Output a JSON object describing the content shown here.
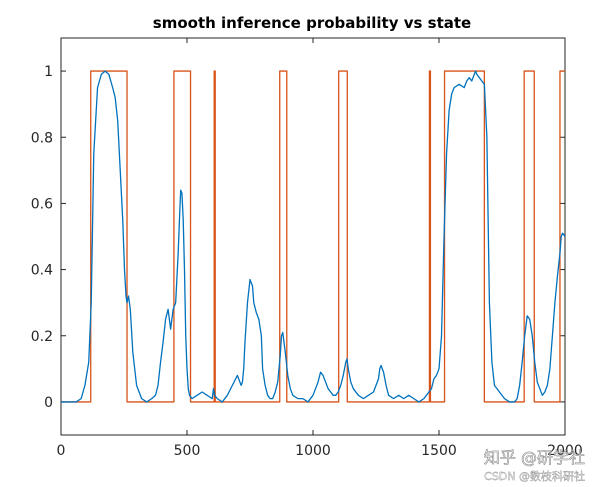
{
  "chart_data": {
    "type": "line",
    "title": "smooth inference probability vs state",
    "xlabel": "",
    "ylabel": "",
    "xlim": [
      0,
      2000
    ],
    "ylim": [
      -0.1,
      1.1
    ],
    "xticks": [
      0,
      500,
      1000,
      1500,
      2000
    ],
    "yticks": [
      0,
      0.2,
      0.4,
      0.6,
      0.8,
      1
    ],
    "xtick_labels": [
      "0",
      "500",
      "1000",
      "1500",
      "2000"
    ],
    "ytick_labels": [
      "0",
      "0.2",
      "0.4",
      "0.6",
      "0.8",
      "1"
    ],
    "grid": false,
    "series": [
      {
        "color": "#0072BD",
        "x": [
          0,
          60,
          80,
          95,
          110,
          120,
          130,
          145,
          160,
          175,
          190,
          205,
          215,
          225,
          235,
          245,
          252,
          258,
          262,
          268,
          275,
          285,
          300,
          320,
          340,
          360,
          375,
          385,
          395,
          405,
          415,
          425,
          435,
          445,
          455,
          465,
          470,
          475,
          480,
          485,
          490,
          495,
          500,
          505,
          510,
          520,
          540,
          560,
          580,
          600,
          605,
          610,
          620,
          640,
          660,
          680,
          700,
          710,
          715,
          720,
          725,
          730,
          740,
          750,
          760,
          765,
          775,
          785,
          795,
          800,
          810,
          820,
          830,
          840,
          850,
          860,
          870,
          875,
          880,
          885,
          890,
          900,
          910,
          920,
          940,
          960,
          980,
          1000,
          1010,
          1020,
          1030,
          1040,
          1050,
          1060,
          1070,
          1080,
          1090,
          1100,
          1110,
          1120,
          1130,
          1135,
          1140,
          1150,
          1160,
          1180,
          1200,
          1220,
          1240,
          1260,
          1265,
          1270,
          1280,
          1290,
          1300,
          1320,
          1340,
          1360,
          1380,
          1400,
          1420,
          1440,
          1450,
          1460,
          1470,
          1480,
          1490,
          1500,
          1510,
          1520,
          1530,
          1540,
          1550,
          1560,
          1580,
          1600,
          1610,
          1620,
          1630,
          1640,
          1645,
          1650,
          1660,
          1670,
          1680,
          1690,
          1700,
          1710,
          1720,
          1740,
          1760,
          1780,
          1800,
          1810,
          1820,
          1830,
          1840,
          1850,
          1860,
          1870,
          1880,
          1890,
          1900,
          1910,
          1920,
          1930,
          1940,
          1950,
          1960,
          1970,
          1980,
          1985,
          1990,
          2000
        ],
        "y": [
          0,
          0,
          0.01,
          0.05,
          0.12,
          0.3,
          0.75,
          0.95,
          0.99,
          1.0,
          0.99,
          0.95,
          0.92,
          0.85,
          0.7,
          0.55,
          0.4,
          0.32,
          0.3,
          0.32,
          0.28,
          0.15,
          0.05,
          0.01,
          0.0,
          0.01,
          0.02,
          0.05,
          0.12,
          0.18,
          0.25,
          0.28,
          0.22,
          0.28,
          0.3,
          0.45,
          0.55,
          0.64,
          0.63,
          0.55,
          0.4,
          0.2,
          0.1,
          0.04,
          0.02,
          0.01,
          0.02,
          0.03,
          0.02,
          0.01,
          0.04,
          0.02,
          0.01,
          0.0,
          0.02,
          0.05,
          0.08,
          0.06,
          0.05,
          0.06,
          0.1,
          0.18,
          0.3,
          0.37,
          0.35,
          0.3,
          0.27,
          0.25,
          0.2,
          0.1,
          0.05,
          0.02,
          0.01,
          0.01,
          0.03,
          0.06,
          0.14,
          0.2,
          0.21,
          0.18,
          0.15,
          0.08,
          0.04,
          0.02,
          0.01,
          0.01,
          0.0,
          0.02,
          0.04,
          0.06,
          0.09,
          0.08,
          0.06,
          0.04,
          0.03,
          0.02,
          0.02,
          0.03,
          0.05,
          0.08,
          0.12,
          0.13,
          0.1,
          0.06,
          0.04,
          0.02,
          0.01,
          0.02,
          0.03,
          0.07,
          0.1,
          0.11,
          0.09,
          0.05,
          0.02,
          0.01,
          0.02,
          0.01,
          0.02,
          0.01,
          0.0,
          0.01,
          0.02,
          0.03,
          0.04,
          0.07,
          0.08,
          0.1,
          0.2,
          0.5,
          0.75,
          0.88,
          0.93,
          0.95,
          0.96,
          0.95,
          0.97,
          0.98,
          0.97,
          0.99,
          1.0,
          0.99,
          0.98,
          0.97,
          0.96,
          0.8,
          0.3,
          0.12,
          0.05,
          0.03,
          0.01,
          0.0,
          0.0,
          0.01,
          0.05,
          0.12,
          0.2,
          0.26,
          0.25,
          0.2,
          0.12,
          0.06,
          0.04,
          0.02,
          0.03,
          0.05,
          0.1,
          0.2,
          0.3,
          0.38,
          0.45,
          0.5,
          0.51,
          0.5
        ]
      },
      {
        "color": "#D95319",
        "x": [
          0,
          118,
          118,
          262,
          262,
          448,
          448,
          514,
          514,
          608,
          608,
          612,
          612,
          868,
          868,
          896,
          896,
          1102,
          1102,
          1136,
          1136,
          1462,
          1462,
          1466,
          1466,
          1522,
          1522,
          1680,
          1680,
          1838,
          1838,
          1878,
          1878,
          1980,
          1980,
          2000
        ],
        "y": [
          0,
          0,
          1,
          1,
          0,
          0,
          1,
          1,
          0,
          0,
          1,
          1,
          0,
          0,
          1,
          1,
          0,
          0,
          1,
          1,
          0,
          0,
          1,
          1,
          0,
          0,
          1,
          1,
          0,
          0,
          1,
          1,
          0,
          0,
          1,
          1
        ]
      }
    ]
  },
  "watermark": {
    "line1": "知乎 @研学社",
    "line2": "CSDN @数枝科研社"
  }
}
